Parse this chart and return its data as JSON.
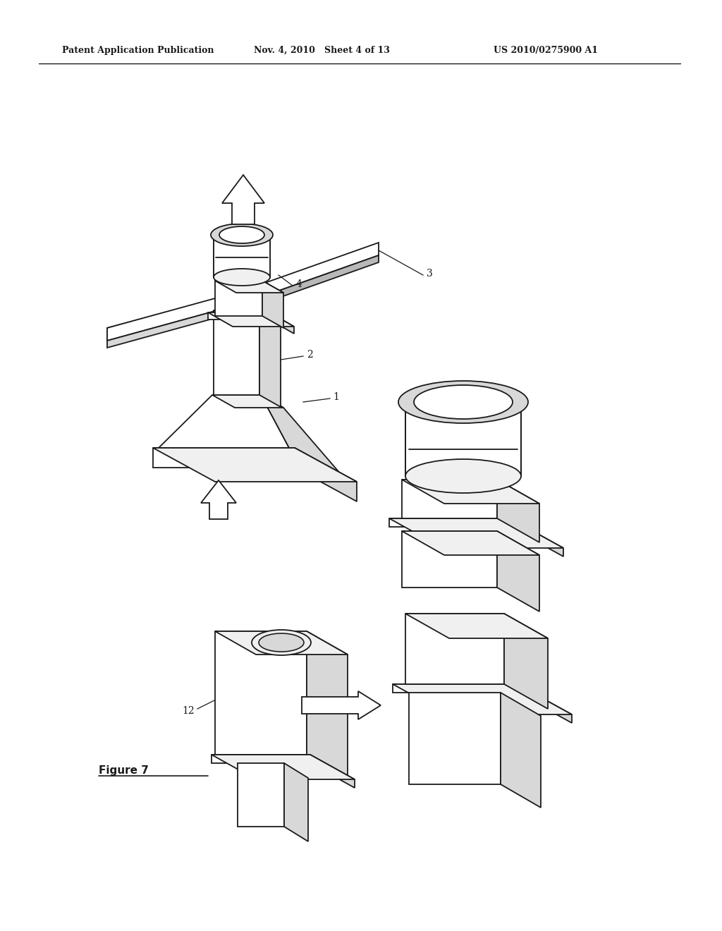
{
  "background_color": "#ffffff",
  "header_left": "Patent Application Publication",
  "header_mid": "Nov. 4, 2010   Sheet 4 of 13",
  "header_right": "US 2010/0275900 A1",
  "figure_label": "Figure 7",
  "line_color": "#1a1a1a",
  "face_white": "#ffffff",
  "face_light": "#f0f0f0",
  "face_mid": "#d8d8d8",
  "face_dark": "#b8b8b8"
}
